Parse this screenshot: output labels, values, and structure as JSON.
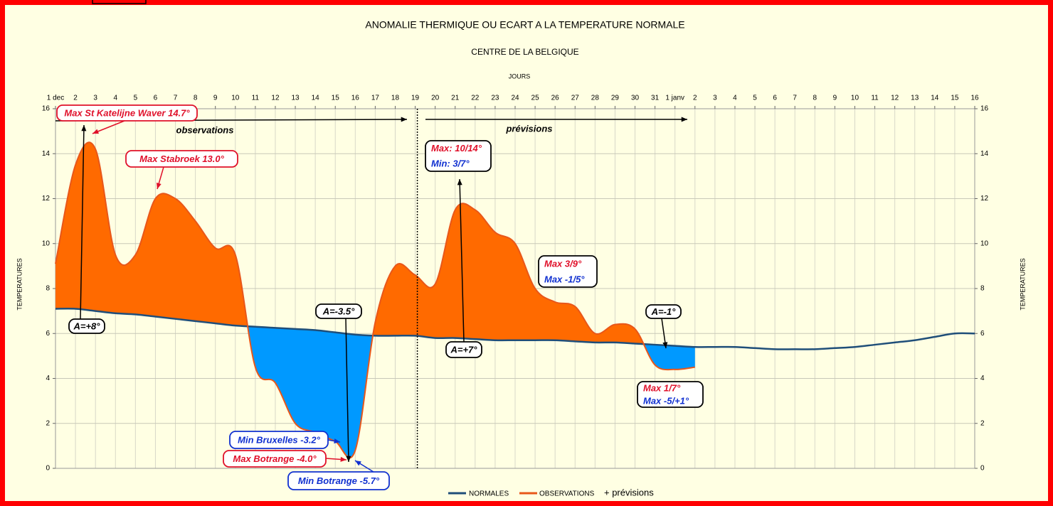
{
  "chart_data": {
    "type": "area-anomaly",
    "title": "ANOMALIE THERMIQUE OU ECART A LA TEMPERATURE NORMALE",
    "subtitle": "CENTRE DE LA BELGIQUE",
    "x_label": "JOURS",
    "y_label": "TEMPERATURES",
    "y2_label": "TEMPERATURES",
    "categories": [
      "1 dec",
      "2",
      "3",
      "4",
      "5",
      "6",
      "7",
      "8",
      "9",
      "10",
      "11",
      "12",
      "13",
      "14",
      "15",
      "16",
      "17",
      "18",
      "19",
      "20",
      "21",
      "22",
      "23",
      "24",
      "25",
      "26",
      "27",
      "28",
      "29",
      "30",
      "31",
      "1 janv",
      "2",
      "3",
      "4",
      "5",
      "6",
      "7",
      "8",
      "9",
      "10",
      "11",
      "12",
      "13",
      "14",
      "15",
      "16"
    ],
    "series": [
      {
        "name": "NORMALES",
        "color": "#1f4e79",
        "values": [
          7.1,
          7.1,
          7.0,
          6.9,
          6.85,
          6.75,
          6.65,
          6.55,
          6.45,
          6.35,
          6.3,
          6.25,
          6.2,
          6.15,
          6.05,
          5.95,
          5.9,
          5.9,
          5.9,
          5.8,
          5.8,
          5.75,
          5.7,
          5.7,
          5.7,
          5.7,
          5.65,
          5.6,
          5.6,
          5.55,
          5.5,
          5.45,
          5.4,
          5.4,
          5.4,
          5.35,
          5.3,
          5.3,
          5.3,
          5.35,
          5.4,
          5.5,
          5.6,
          5.7,
          5.85,
          6.0,
          6.0
        ]
      },
      {
        "name": "OBSERVATIONS",
        "color": "#e8571a",
        "values": [
          9.1,
          13.5,
          14.2,
          9.5,
          9.5,
          12.0,
          12.0,
          11.0,
          9.8,
          9.5,
          4.5,
          3.8,
          2.0,
          1.6,
          1.2,
          0.8,
          6.5,
          9.0,
          8.6,
          8.2,
          11.5,
          11.5,
          10.5,
          10.0,
          8.0,
          7.4,
          7.2,
          6.0,
          6.4,
          6.2,
          4.6,
          4.4,
          4.5,
          null,
          null,
          null,
          null,
          null,
          null,
          null,
          null,
          null,
          null,
          null,
          null,
          null,
          null
        ]
      }
    ],
    "legend_extra": "+ prévisions",
    "above_color": "#ff6a00",
    "below_color": "#0099ff",
    "ylim": [
      0,
      16
    ],
    "yticks": [
      0,
      2,
      4,
      6,
      8,
      10,
      12,
      14,
      16
    ],
    "y2lim": [
      0,
      16
    ],
    "y2ticks": [
      0,
      2,
      4,
      6,
      8,
      10,
      12,
      14,
      16
    ],
    "grid": true,
    "legend": "bottom",
    "annotations": [
      {
        "text": "Max St Katelijne Waver  14.7°",
        "color": "#e0102a",
        "border": "#e0102a"
      },
      {
        "text": "Max Stabroek 13.0°",
        "color": "#e0102a",
        "border": "#e0102a"
      },
      {
        "text": "A=+8°",
        "color": "#000000",
        "border": "#000000"
      },
      {
        "text": "observations",
        "color": "#000000"
      },
      {
        "text": "prévisions",
        "color": "#000000"
      },
      {
        "lines": [
          {
            "text": "Max: 10/14°",
            "color": "#e0102a"
          },
          {
            "text": "Min: 3/7°",
            "color": "#1030d0"
          }
        ],
        "border": "#000000"
      },
      {
        "text": "A=+7°",
        "color": "#000000",
        "border": "#000000"
      },
      {
        "lines": [
          {
            "text": "Max 3/9°",
            "color": "#e0102a"
          },
          {
            "text": "Max -1/5°",
            "color": "#1030d0"
          }
        ],
        "border": "#000000"
      },
      {
        "text": "A=-3.5°",
        "color": "#000000",
        "border": "#000000"
      },
      {
        "text": "A=-1°",
        "color": "#000000",
        "border": "#000000"
      },
      {
        "lines": [
          {
            "text": "Max 1/7°",
            "color": "#e0102a"
          },
          {
            "text": "Max -5/+1°",
            "color": "#1030d0"
          }
        ],
        "border": "#000000"
      },
      {
        "text": "Min Bruxelles -3.2°",
        "color": "#1030d0",
        "border": "#1030d0"
      },
      {
        "text": "Max Botrange -4.0°",
        "color": "#e0102a",
        "border": "#e0102a"
      },
      {
        "text": "Min Botrange -5.7°",
        "color": "#1030d0",
        "border": "#1030d0"
      }
    ]
  }
}
